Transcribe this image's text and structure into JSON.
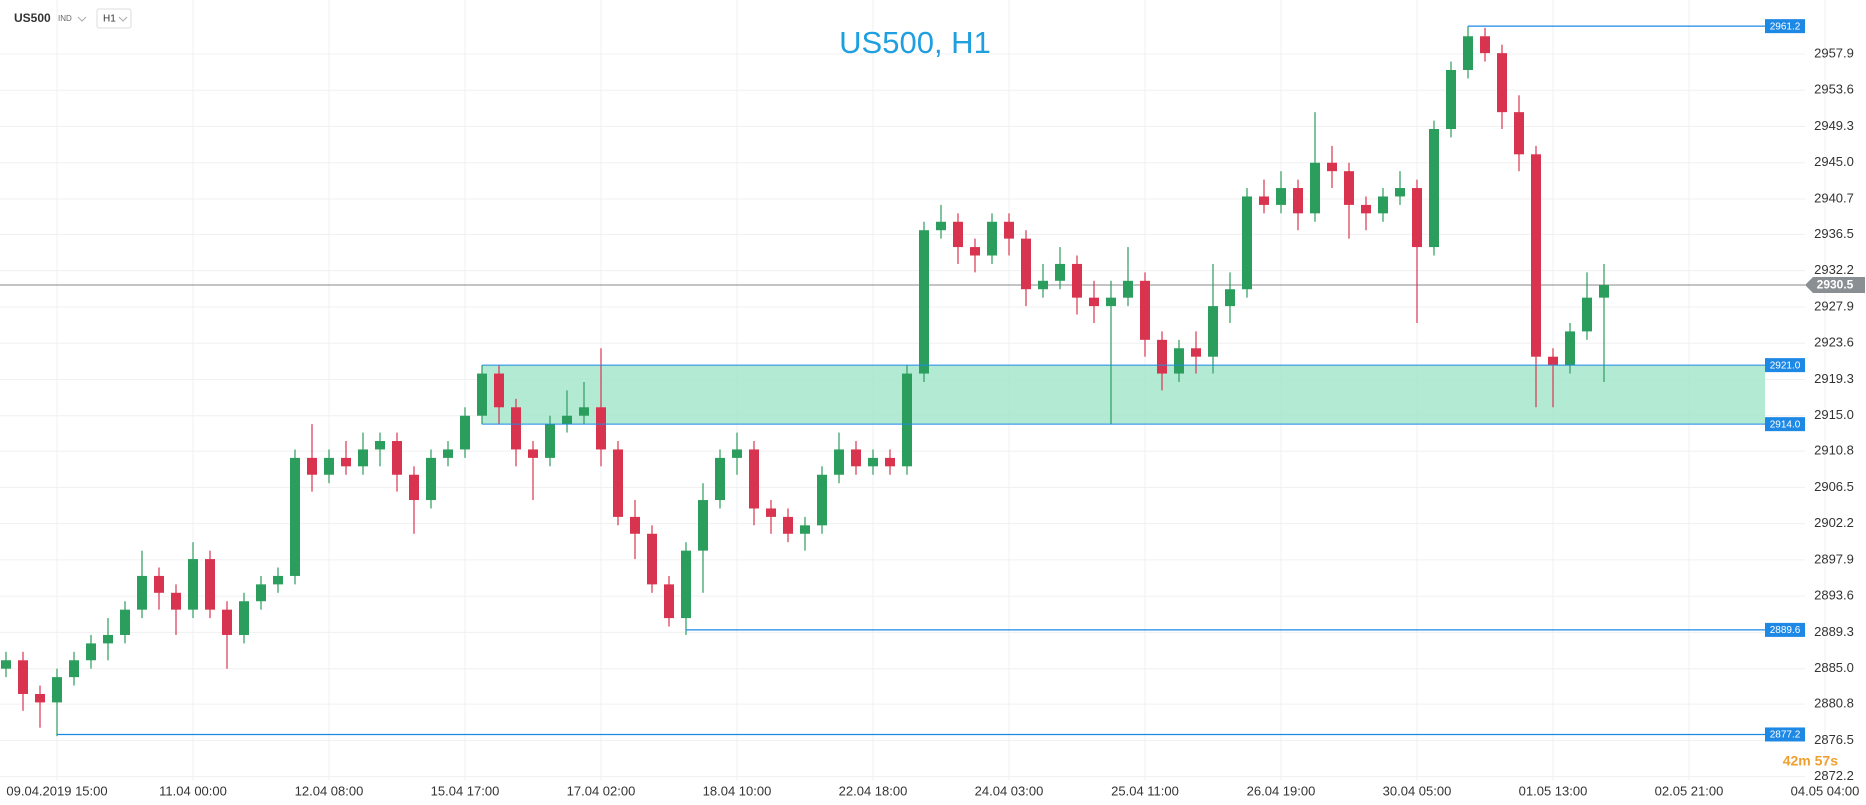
{
  "header": {
    "symbol": "US500",
    "market": "IND",
    "timeframe": "H1"
  },
  "timer": "42m 57s",
  "chart_data": {
    "type": "candlestick",
    "title": "US500, H1",
    "categories": [
      null,
      null,
      null,
      "09.04.2019  15:00",
      null,
      null,
      null,
      null,
      null,
      null,
      null,
      "11.04  00:00",
      null,
      null,
      null,
      null,
      null,
      null,
      null,
      "12.04  08:00",
      null,
      null,
      null,
      null,
      null,
      null,
      null,
      "15.04  17:00",
      null,
      null,
      null,
      null,
      null,
      null,
      null,
      "17.04  02:00",
      null,
      null,
      null,
      null,
      null,
      null,
      null,
      "18.04  10:00",
      null,
      null,
      null,
      null,
      null,
      null,
      null,
      "22.04  18:00",
      null,
      null,
      null,
      null,
      null,
      null,
      null,
      "24.04  03:00",
      null,
      null,
      null,
      null,
      null,
      null,
      null,
      "25.04  11:00",
      null,
      null,
      null,
      null,
      null,
      null,
      null,
      "26.04  19:00",
      null,
      null,
      null,
      null,
      null,
      null,
      null,
      "30.04  05:00",
      null,
      null,
      null,
      null,
      null,
      null,
      null,
      "01.05  13:00",
      null,
      null,
      null,
      null,
      null,
      null,
      null,
      "02.05  21:00",
      null,
      null,
      null,
      null,
      null,
      null,
      null,
      "04.05  04:00"
    ],
    "open": [
      2885,
      2886,
      2882,
      2881,
      2884,
      2886,
      2888,
      2889,
      2892,
      2896,
      2894,
      2892,
      2898,
      2892,
      2889,
      2893,
      2895,
      2896,
      2910,
      2908,
      2910,
      2909,
      2911,
      2912,
      2908,
      2905,
      2910,
      2911,
      2915,
      2920,
      2916,
      2911,
      2910,
      2914,
      2915,
      2916,
      2911,
      2903,
      2901,
      2895,
      2891,
      2899,
      2905,
      2910,
      2911,
      2904,
      2903,
      2901,
      2902,
      2908,
      2911,
      2909,
      2910,
      2909,
      2920,
      2937,
      2938,
      2935,
      2934,
      2938,
      2936,
      2930,
      2931,
      2933,
      2929,
      2928,
      2929,
      2931,
      2924,
      2920,
      2923,
      2922,
      2928,
      2930,
      2941,
      2940,
      2942,
      2939,
      2945,
      2944,
      2940,
      2939,
      2941,
      2942,
      2935,
      2949,
      2956,
      2960,
      2958,
      2951,
      2946,
      2922,
      2921,
      2925,
      2929,
      null,
      null,
      null,
      null,
      null,
      null,
      null,
      null,
      null,
      null,
      null,
      null,
      null
    ],
    "high": [
      2887,
      2887,
      2883,
      2885,
      2887,
      2889,
      2891,
      2893,
      2899,
      2897,
      2895,
      2900,
      2899,
      2893,
      2894,
      2896,
      2897,
      2911,
      2914,
      2911,
      2912,
      2913,
      2913,
      2913,
      2909,
      2911,
      2912,
      2916,
      2921,
      2921,
      2917,
      2912,
      2915,
      2918,
      2919,
      2923,
      2912,
      2905,
      2902,
      2896,
      2900,
      2907,
      2911,
      2913,
      2912,
      2905,
      2904,
      2903,
      2909,
      2913,
      2912,
      2911,
      2911,
      2921,
      2938,
      2940,
      2939,
      2936,
      2939,
      2939,
      2937,
      2933,
      2935,
      2934,
      2931,
      2931,
      2935,
      2932,
      2925,
      2924,
      2925,
      2933,
      2932,
      2942,
      2943,
      2944,
      2943,
      2951,
      2947,
      2945,
      2941,
      2942,
      2944,
      2943,
      2950,
      2957,
      2961.2,
      2961,
      2959,
      2953,
      2947,
      2923,
      2926,
      2932,
      2933,
      null,
      null,
      null,
      null,
      null,
      null,
      null,
      null,
      null,
      null,
      null,
      null,
      null
    ],
    "low": [
      2884,
      2880,
      2878,
      2877,
      2883,
      2885,
      2886,
      2888,
      2891,
      2892,
      2889,
      2891,
      2891,
      2885,
      2888,
      2892,
      2894,
      2895,
      2906,
      2907,
      2908,
      2908,
      2909,
      2906,
      2901,
      2904,
      2909,
      2910,
      2914,
      2914,
      2909,
      2905,
      2909,
      2913,
      2914,
      2909,
      2902,
      2898,
      2894,
      2890,
      2889,
      2894,
      2904,
      2908,
      2902,
      2901,
      2900,
      2899,
      2901,
      2907,
      2908,
      2908,
      2908,
      2908,
      2919,
      2936,
      2933,
      2932,
      2933,
      2934,
      2928,
      2929,
      2930,
      2927,
      2926,
      2914,
      2928,
      2922,
      2918,
      2919,
      2920,
      2920,
      2926,
      2929,
      2939,
      2939,
      2937,
      2938,
      2942,
      2936,
      2937,
      2938,
      2940,
      2926,
      2934,
      2948,
      2955,
      2957,
      2949,
      2944,
      2916,
      2916,
      2920,
      2924,
      2919,
      null,
      null,
      null,
      null,
      null,
      null,
      null,
      null,
      null,
      null,
      null,
      null,
      null
    ],
    "close": [
      2886,
      2882,
      2881,
      2884,
      2886,
      2888,
      2889,
      2892,
      2896,
      2894,
      2892,
      2898,
      2892,
      2889,
      2893,
      2895,
      2896,
      2910,
      2908,
      2910,
      2909,
      2911,
      2912,
      2908,
      2905,
      2910,
      2911,
      2915,
      2920,
      2916,
      2911,
      2910,
      2914,
      2915,
      2916,
      2911,
      2903,
      2901,
      2895,
      2891,
      2899,
      2905,
      2910,
      2911,
      2904,
      2903,
      2901,
      2902,
      2908,
      2911,
      2909,
      2910,
      2909,
      2920,
      2937,
      2938,
      2935,
      2934,
      2938,
      2936,
      2930,
      2931,
      2933,
      2929,
      2928,
      2929,
      2931,
      2924,
      2920,
      2923,
      2922,
      2928,
      2930,
      2941,
      2940,
      2942,
      2939,
      2945,
      2944,
      2940,
      2939,
      2941,
      2942,
      2935,
      2949,
      2956,
      2960,
      2958,
      2951,
      2946,
      2922,
      2921,
      2925,
      2929,
      2930.5,
      null,
      null,
      null,
      null,
      null,
      null,
      null,
      null,
      null,
      null,
      null,
      null,
      null
    ],
    "up_color": "#2b9d5c",
    "down_color": "#d9344f",
    "ylim": [
      2871.8,
      2964.3
    ],
    "yticks": [
      2872.2,
      2876.5,
      2880.8,
      {
        "value": 2885.0,
        "label": "2885.0"
      },
      2889.3,
      2893.6,
      2897.9,
      2902.2,
      2906.5,
      2910.8,
      {
        "value": 2915.0,
        "label": "2915.0"
      },
      2919.3,
      2923.6,
      2927.9,
      2932.2,
      2936.5,
      2940.7,
      {
        "value": 2945.0,
        "label": "2945.0"
      },
      2949.3,
      2953.6,
      2957.9
    ],
    "grid": true,
    "levels": [
      2961.2,
      2889.6,
      2877.2
    ],
    "zone": [
      {
        "value": 2914.0,
        "label": "2914.0"
      },
      {
        "value": 2921.0,
        "label": "2921.0"
      }
    ],
    "zone_color": "#a6e6cc",
    "level_color": "#1e88e5",
    "last_price": 2930.5
  }
}
